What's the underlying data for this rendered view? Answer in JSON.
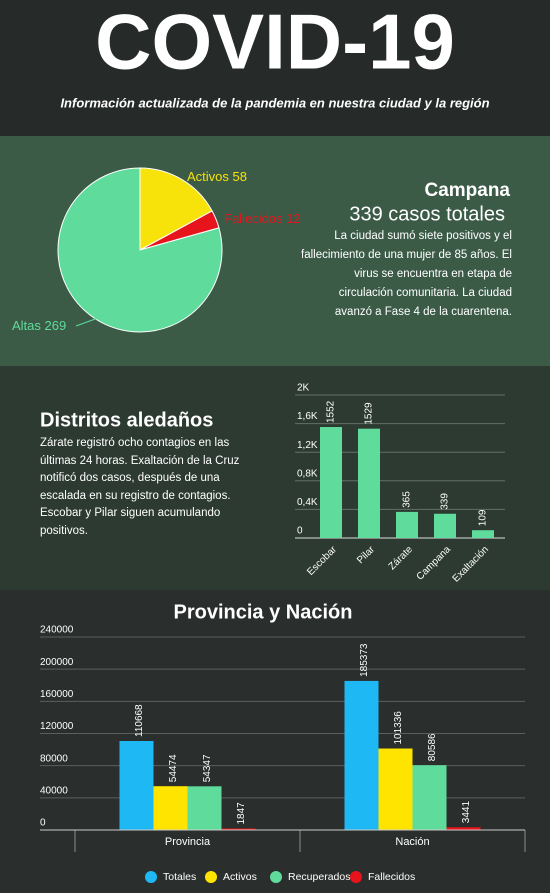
{
  "header": {
    "title": "COVID-19",
    "subtitle": "Información actualizada de la pandemia en nuestra ciudad y la región"
  },
  "campana": {
    "title": "Campana",
    "subtitle": "339 casos totales",
    "text": "La ciudad sumó siete positivos y el fallecimiento de una mujer de 85 años. El virus se encuentra en etapa de circulación comunitaria. La ciudad avanzó a Fase 4 de la cuarentena."
  },
  "distritos": {
    "title": "Distritos aledaños",
    "text": "Zárate registró ocho contagios en las últimas 24 horas. Exaltación de la Cruz notificó dos casos, después de una escalada en su registro de contagios. Escobar y Pilar siguen acumulando positivos."
  },
  "chart_data": [
    {
      "type": "pie",
      "categories": [
        "Activos",
        "Fallecidos",
        "Altas"
      ],
      "values": [
        58,
        12,
        269
      ],
      "colors": [
        "#f7e20a",
        "#e8141b",
        "#5fdc9b"
      ]
    },
    {
      "type": "bar",
      "categories": [
        "Escobar",
        "Pilar",
        "Zárate",
        "Campana",
        "Exaltación"
      ],
      "values": [
        1552,
        1529,
        365,
        339,
        109
      ],
      "color": "#5fdc9b",
      "ylim": [
        0,
        2000
      ],
      "yticks": [
        {
          "value": 0,
          "label": "0"
        },
        {
          "value": 400,
          "label": "0,4K"
        },
        {
          "value": 800,
          "label": "0,8K"
        },
        {
          "value": 1200,
          "label": "1,2K"
        },
        {
          "value": 1600,
          "label": "1,6K"
        },
        {
          "value": 2000,
          "label": "2K"
        }
      ],
      "grid": true
    },
    {
      "type": "grouped-bar",
      "title": "Provincia y Nación",
      "categories": [
        "Provincia",
        "Nación"
      ],
      "series": [
        {
          "name": "Totales",
          "color": "#1eb8f5",
          "values": [
            110668,
            185373
          ]
        },
        {
          "name": "Activos",
          "color": "#ffe400",
          "values": [
            54474,
            101336
          ]
        },
        {
          "name": "Recuperados",
          "color": "#5fdc9b",
          "values": [
            54347,
            80586
          ]
        },
        {
          "name": "Fallecidos",
          "color": "#e8141b",
          "values": [
            1847,
            3441
          ]
        }
      ],
      "ylim": [
        0,
        240000
      ],
      "yticks": [
        0,
        40000,
        80000,
        120000,
        160000,
        200000,
        240000
      ],
      "grid": true,
      "legend": "bottom"
    }
  ]
}
